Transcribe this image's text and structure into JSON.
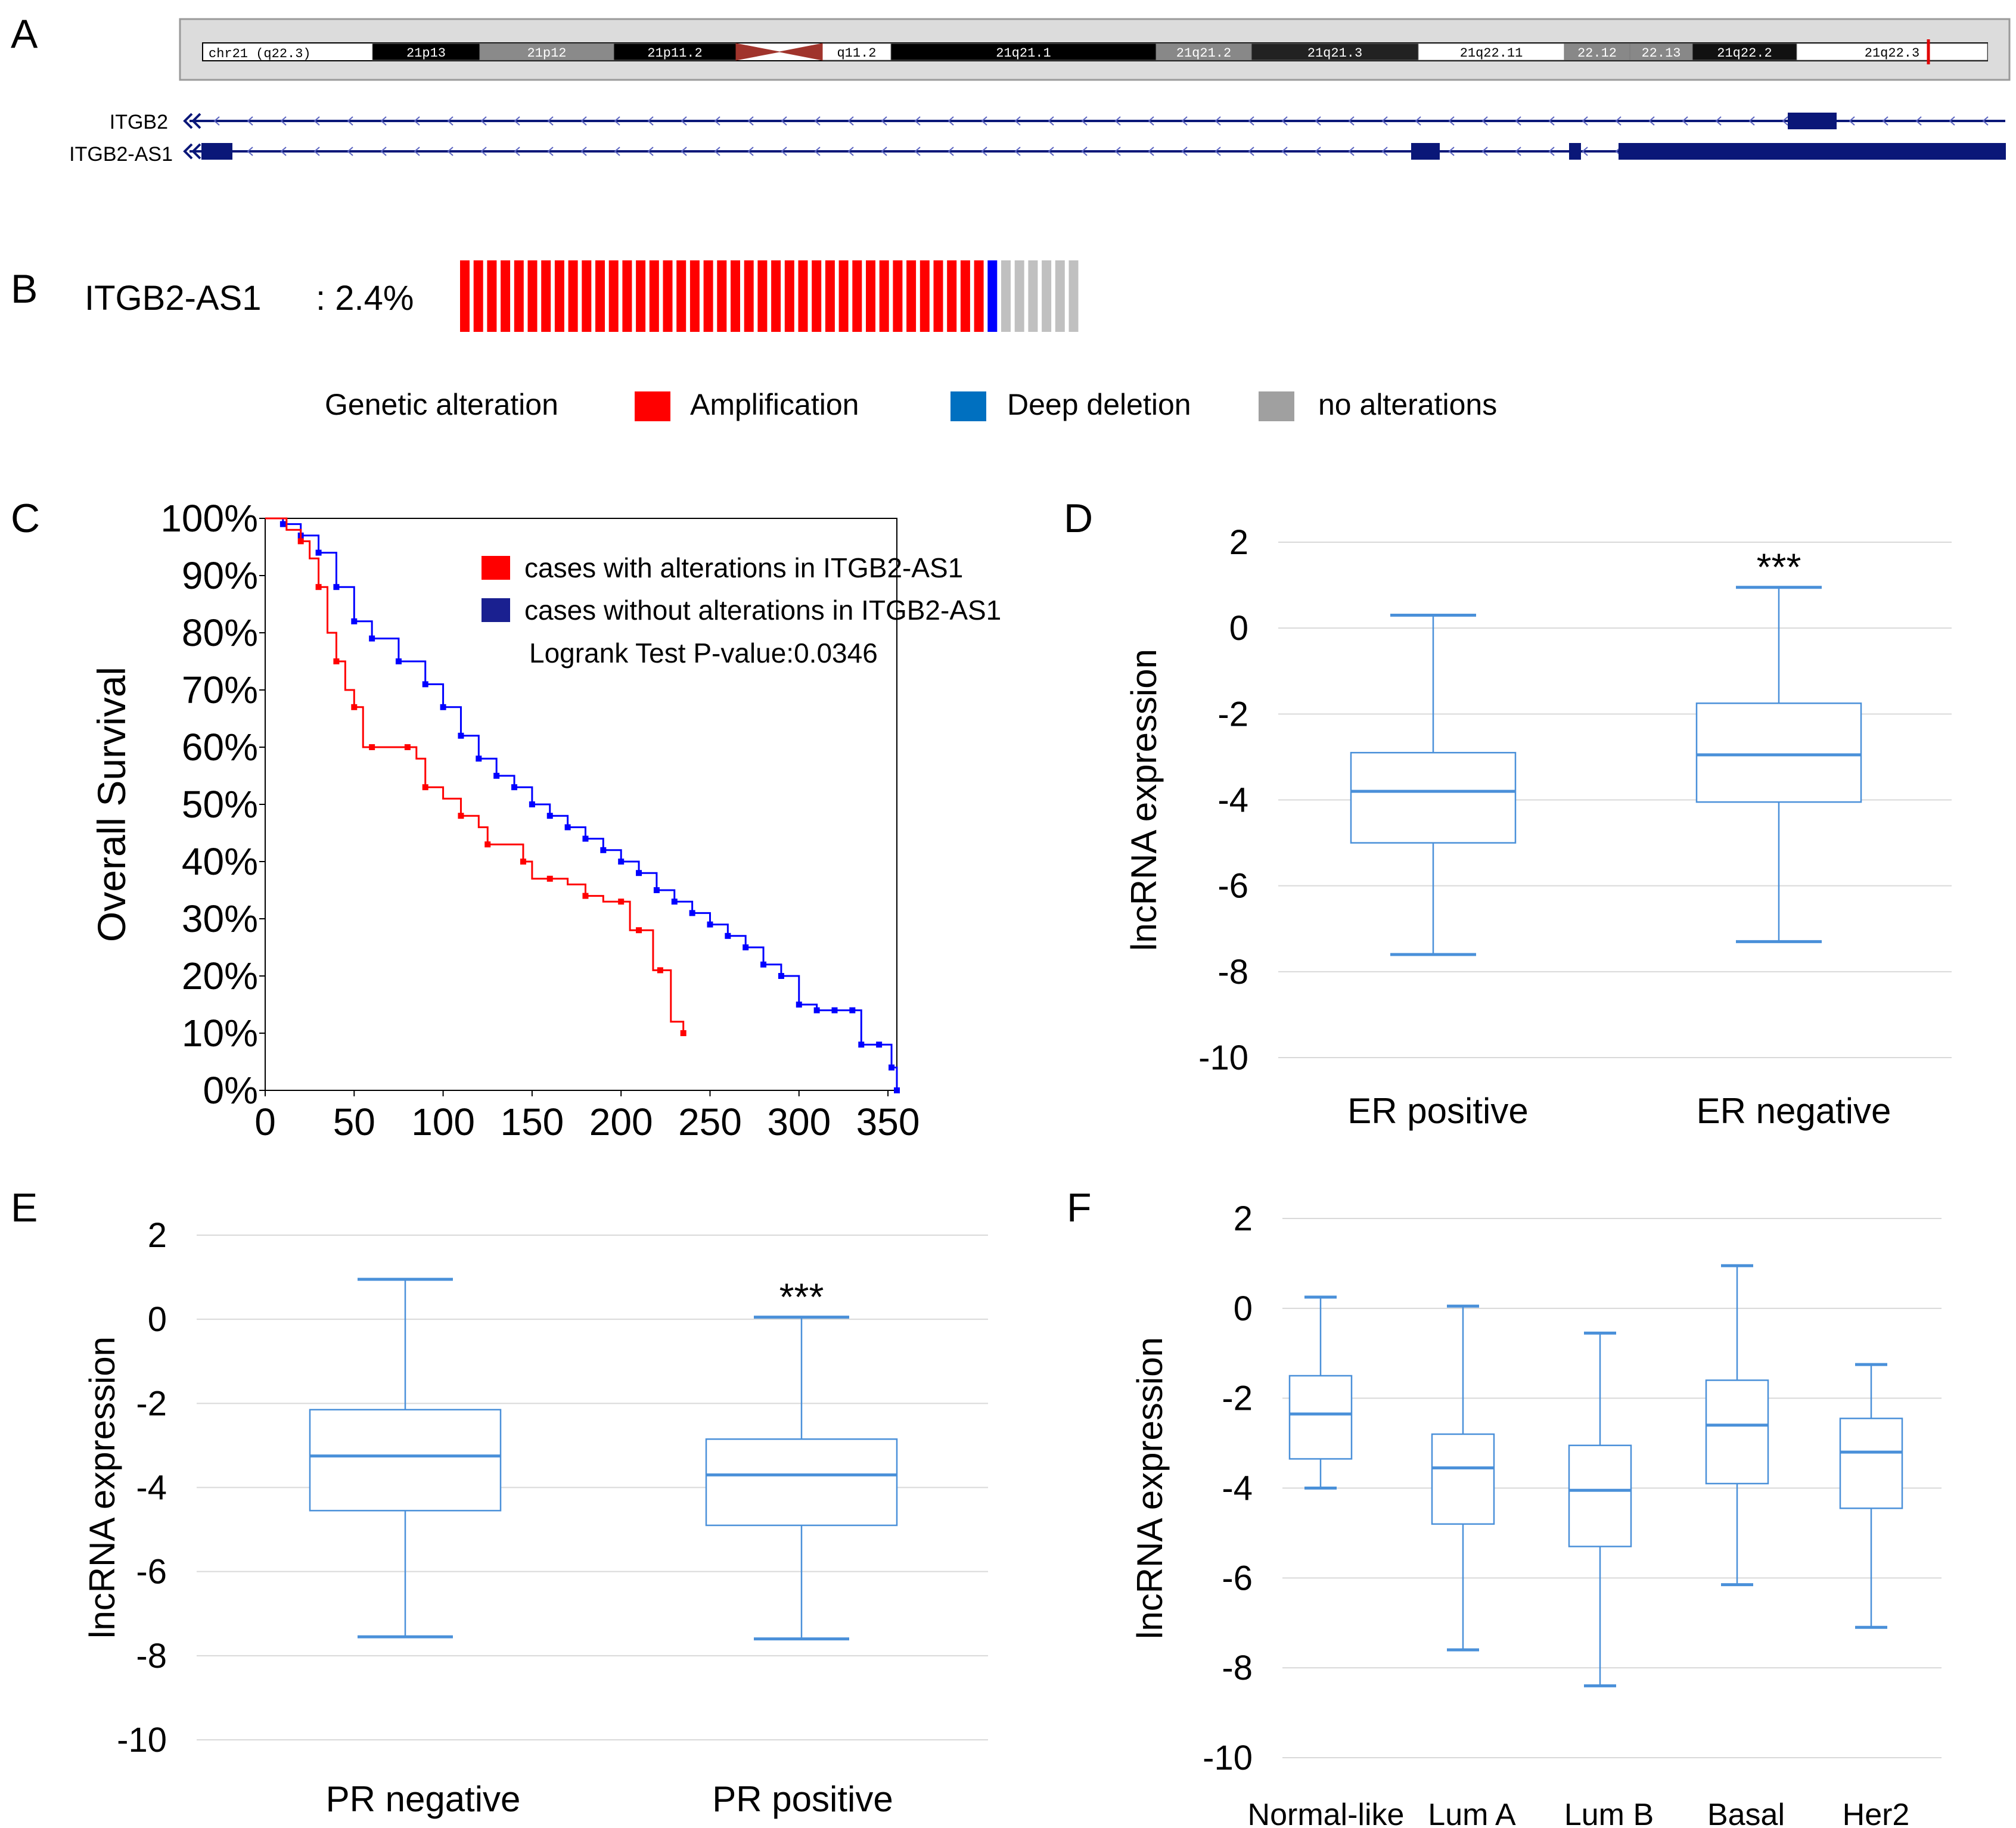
{
  "panels": {
    "A": {
      "letter": "A",
      "chrom_label": "chr21 (q22.3)",
      "bands": [
        "21p13",
        "21p12",
        "21p11.2",
        "q11.2",
        "21q21.1",
        "21q21.2",
        "21q21.3",
        "21q22.11",
        "22.12",
        "22.13",
        "21q22.2",
        "21q22.3"
      ],
      "genes": [
        "ITGB2",
        "ITGB2-AS1"
      ]
    },
    "B": {
      "letter": "B",
      "gene": "ITGB2-AS1",
      "freq": ": 2.4%",
      "counts": {
        "amplification": 39,
        "deep_deletion": 1,
        "none": 6
      },
      "legend_title": "Genetic alteration",
      "legend": [
        "Amplification",
        "Deep deletion",
        "no alterations"
      ],
      "colors": {
        "amplification": "#ff0000",
        "deep_deletion": "#0000ff",
        "none": "#c0c0c0",
        "legend_deletion": "#0070c0",
        "legend_none": "#a0a0a0"
      }
    },
    "C": {
      "letter": "C"
    },
    "D": {
      "letter": "D"
    },
    "E": {
      "letter": "E"
    },
    "F": {
      "letter": "F"
    }
  },
  "chart_data": [
    {
      "id": "C",
      "type": "line",
      "title": "",
      "ylabel": "Overall Survival",
      "xlabel": "",
      "xlim": [
        0,
        355
      ],
      "ylim": [
        0,
        100
      ],
      "xticks": [
        "0",
        "50",
        "100",
        "150",
        "200",
        "250",
        "300",
        "350"
      ],
      "yticks": [
        "0%",
        "10%",
        "20%",
        "30%",
        "40%",
        "50%",
        "60%",
        "70%",
        "80%",
        "90%",
        "100%"
      ],
      "legend": [
        "cases with alterations in ITGB2-AS1",
        "cases without alterations in ITGB2-AS1"
      ],
      "annotation": "Logrank Test P-value:0.0346",
      "series": [
        {
          "name": "cases with alterations in ITGB2-AS1",
          "color": "#ff0000",
          "x": [
            0,
            12,
            20,
            25,
            30,
            35,
            40,
            45,
            50,
            55,
            60,
            70,
            80,
            85,
            90,
            100,
            110,
            120,
            125,
            135,
            145,
            150,
            160,
            170,
            180,
            190,
            200,
            205,
            210,
            218,
            222,
            228,
            235
          ],
          "y": [
            100,
            98,
            96,
            93,
            88,
            80,
            75,
            70,
            67,
            60,
            60,
            60,
            60,
            58,
            53,
            51,
            48,
            46,
            43,
            43,
            40,
            37,
            37,
            36,
            34,
            33,
            33,
            28,
            28,
            21,
            21,
            12,
            10
          ]
        },
        {
          "name": "cases without alterations in ITGB2-AS1",
          "color": "#0000ff",
          "x": [
            0,
            10,
            20,
            30,
            40,
            50,
            60,
            75,
            90,
            100,
            110,
            120,
            130,
            140,
            150,
            160,
            170,
            180,
            190,
            200,
            210,
            220,
            230,
            240,
            250,
            260,
            270,
            280,
            290,
            300,
            310,
            320,
            330,
            335,
            345,
            352,
            355
          ],
          "y": [
            100,
            99,
            97,
            94,
            88,
            82,
            79,
            75,
            71,
            67,
            62,
            58,
            55,
            53,
            50,
            48,
            46,
            44,
            42,
            40,
            38,
            35,
            33,
            31,
            29,
            27,
            25,
            22,
            20,
            15,
            14,
            14,
            14,
            8,
            8,
            4,
            0
          ]
        }
      ]
    },
    {
      "id": "D",
      "type": "box",
      "ylabel": "lncRNA expression",
      "ylim": [
        -10,
        2
      ],
      "yticks": [
        "2",
        "0",
        "-2",
        "-4",
        "-6",
        "-8",
        "-10"
      ],
      "categories": [
        "ER positive",
        "ER negative"
      ],
      "boxes": [
        {
          "min": -7.6,
          "q1": -5.0,
          "median": -3.8,
          "q3": -2.9,
          "max": 0.3
        },
        {
          "min": -7.3,
          "q1": -4.05,
          "median": -2.95,
          "q3": -1.75,
          "max": 0.95
        }
      ],
      "significance": "***",
      "significance_on": 1
    },
    {
      "id": "E",
      "type": "box",
      "ylabel": "lncRNA expression",
      "ylim": [
        -10,
        2
      ],
      "yticks": [
        "2",
        "0",
        "-2",
        "-4",
        "-6",
        "-8",
        "-10"
      ],
      "categories": [
        "PR negative",
        "PR positive"
      ],
      "boxes": [
        {
          "min": -7.55,
          "q1": -4.55,
          "median": -3.25,
          "q3": -2.15,
          "max": 0.95
        },
        {
          "min": -7.6,
          "q1": -4.9,
          "median": -3.7,
          "q3": -2.85,
          "max": 0.05
        }
      ],
      "significance": "***",
      "significance_on": 1
    },
    {
      "id": "F",
      "type": "box",
      "ylabel": "lncRNA expression",
      "ylim": [
        -10,
        2
      ],
      "yticks": [
        "2",
        "0",
        "-2",
        "-4",
        "-6",
        "-8",
        "-10"
      ],
      "categories": [
        "Normal-like",
        "Lum A",
        "Lum B",
        "Basal",
        "Her2"
      ],
      "boxes": [
        {
          "min": -4.0,
          "q1": -3.35,
          "median": -2.35,
          "q3": -1.5,
          "max": 0.25
        },
        {
          "min": -7.6,
          "q1": -4.8,
          "median": -3.55,
          "q3": -2.8,
          "max": 0.05
        },
        {
          "min": -8.4,
          "q1": -5.3,
          "median": -4.05,
          "q3": -3.05,
          "max": -0.55
        },
        {
          "min": -6.15,
          "q1": -3.9,
          "median": -2.6,
          "q3": -1.6,
          "max": 0.95
        },
        {
          "min": -7.1,
          "q1": -4.45,
          "median": -3.2,
          "q3": -2.45,
          "max": -1.25
        }
      ]
    }
  ]
}
